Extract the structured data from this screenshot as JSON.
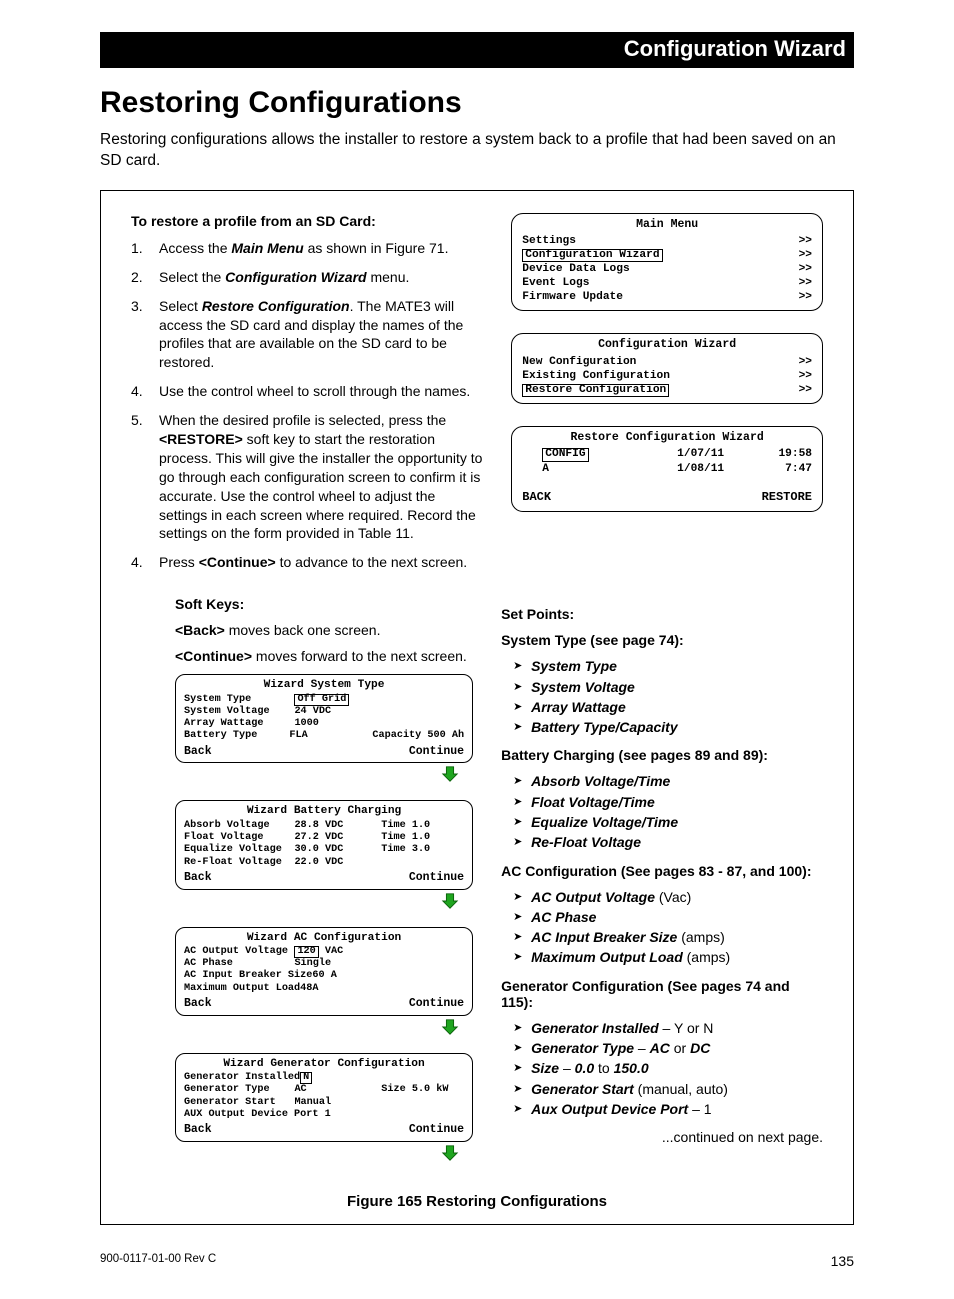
{
  "header": {
    "breadcrumb": "Configuration Wizard"
  },
  "title": "Restoring Configurations",
  "intro": "Restoring configurations allows the installer to restore a system back to a profile that had been saved on an SD card.",
  "restore_heading": "To restore a profile from an SD Card:",
  "steps": {
    "s1_pre": "Access the ",
    "s1_bi": "Main Menu",
    "s1_post": " as shown in Figure 71.",
    "s2_pre": "Select the ",
    "s2_bi": "Configuration Wizard",
    "s2_post": " menu.",
    "s3_pre": "Select ",
    "s3_bi": "Restore Configuration",
    "s3_post": ". The MATE3 will access the SD card and display the names of the profiles that are available on the SD card to be restored.",
    "s4": "Use the control wheel to scroll through the names.",
    "s5_pre": "When the desired profile is selected, press the ",
    "s5_b": "<RESTORE>",
    "s5_post": " soft key to start the restoration process.  This will give the installer the opportunity to go through each configuration screen to confirm it is accurate.  Use the control wheel to adjust the settings in each screen where required.  Record the settings on the form provided in Table 11.",
    "s6_pre": "Press ",
    "s6_b": "<Continue>",
    "s6_post": " to advance to the next screen."
  },
  "main_menu": {
    "title": "Main Menu",
    "items": [
      "Settings",
      "Configuration Wizard",
      "Device Data Logs",
      "Event Logs",
      "Firmware Update"
    ],
    "selected_index": 1
  },
  "cw_menu": {
    "title": "Configuration Wizard",
    "items": [
      "New Configuration",
      "Existing Configuration",
      "Restore Configuration"
    ],
    "selected_index": 2
  },
  "rcw": {
    "title": "Restore Configuration Wizard",
    "rows": [
      {
        "name": "CONFIG",
        "date": "1/07/11",
        "time": "19:58",
        "selected": true
      },
      {
        "name": "A",
        "date": "1/08/11",
        "time": "7:47",
        "selected": false
      }
    ],
    "sk_left": "BACK",
    "sk_right": "RESTORE"
  },
  "soft_keys": {
    "heading": "Soft Keys:",
    "back_b": "<Back>",
    "back_t": " moves back one screen.",
    "cont_b": "<Continue>",
    "cont_t": " moves forward to the next screen."
  },
  "wiz_system": {
    "title": "Wizard System Type",
    "rows": [
      {
        "label": "System Type",
        "val": "Off Grid",
        "selected": true
      },
      {
        "label": "System Voltage",
        "val": "24 VDC"
      },
      {
        "label": "Array Wattage",
        "val": "1000"
      },
      {
        "label": "Battery Type",
        "val": "FLA",
        "extra_label": "Capacity",
        "extra_val": "500 Ah"
      }
    ],
    "sk_left": "Back",
    "sk_right": "Continue"
  },
  "wiz_battery": {
    "title": "Wizard Battery Charging",
    "rows": [
      {
        "label": "Absorb Voltage",
        "val": "28.8 VDC",
        "extra_label": "Time",
        "extra_val": "1.0"
      },
      {
        "label": "Float Voltage",
        "val": "27.2 VDC",
        "extra_label": "Time",
        "extra_val": "1.0"
      },
      {
        "label": "Equalize Voltage",
        "val": "30.0 VDC",
        "extra_label": "Time",
        "extra_val": "3.0"
      },
      {
        "label": "Re-Float Voltage",
        "val": "22.0 VDC"
      }
    ],
    "sk_left": "Back",
    "sk_right": "Continue"
  },
  "wiz_ac": {
    "title": "Wizard AC Configuration",
    "rows": [
      {
        "label": "AC Output Voltage",
        "val": "120",
        "selected": true,
        "suffix": "VAC"
      },
      {
        "label": "AC Phase",
        "val": "Single"
      },
      {
        "label": "AC Input Breaker Size",
        "val": "60 A"
      },
      {
        "label": "Maximum Output Load",
        "val": "48A"
      }
    ],
    "sk_left": "Back",
    "sk_right": "Continue"
  },
  "wiz_gen": {
    "title": "Wizard Generator Configuration",
    "rows": [
      {
        "label": "Generator Installed",
        "val": "N",
        "selected": true
      },
      {
        "label": "Generator Type",
        "val": "AC",
        "extra_label": "Size",
        "extra_val": "5.0 kW"
      },
      {
        "label": "Generator Start",
        "val": "Manual"
      },
      {
        "label": "AUX Output Device Port 1",
        "val": ""
      }
    ],
    "sk_left": "Back",
    "sk_right": "Continue"
  },
  "set_points": {
    "heading": "Set Points:",
    "system_heading": "System Type (see page 74):",
    "system_list": [
      "System Type",
      "System Voltage",
      "Array Wattage",
      "Battery Type/Capacity"
    ],
    "battery_heading": "Battery Charging (see pages 89 and 89):",
    "battery_list": [
      "Absorb Voltage/Time",
      "Float Voltage/Time",
      "Equalize Voltage/Time",
      "Re-Float Voltage"
    ],
    "ac_heading": "AC Configuration (See pages 83 - 87, and 100):",
    "ac_list": [
      {
        "bi": "AC Output Voltage",
        "post": " (Vac)"
      },
      {
        "bi": "AC Phase"
      },
      {
        "bi": "AC Input Breaker Size",
        "post": " (amps)"
      },
      {
        "bi": "Maximum Output Load",
        "post": " (amps)"
      }
    ],
    "gen_heading": "Generator  Configuration (See pages 74 and 115):",
    "gen_list": [
      {
        "bi": "Generator Installed",
        "post": " – Y or N"
      },
      {
        "bi": "Generator Type",
        "mid": " – ",
        "bi2": "AC",
        "mid2": " or ",
        "bi3": "DC"
      },
      {
        "bi": "Size",
        "mid": "  –  ",
        "bi2": "0.0",
        "mid2": " to ",
        "bi3": "150.0"
      },
      {
        "bi": "Generator Start",
        "post": " (manual, auto)"
      },
      {
        "bi": "Aux Output Device Port",
        "post": " – 1"
      }
    ]
  },
  "continued": "...continued on next page.",
  "figure_caption": "Figure 165     Restoring Configurations",
  "footer": {
    "rev": "900-0117-01-00 Rev C",
    "page": "135"
  },
  "arrow_color": "#1fa51f"
}
